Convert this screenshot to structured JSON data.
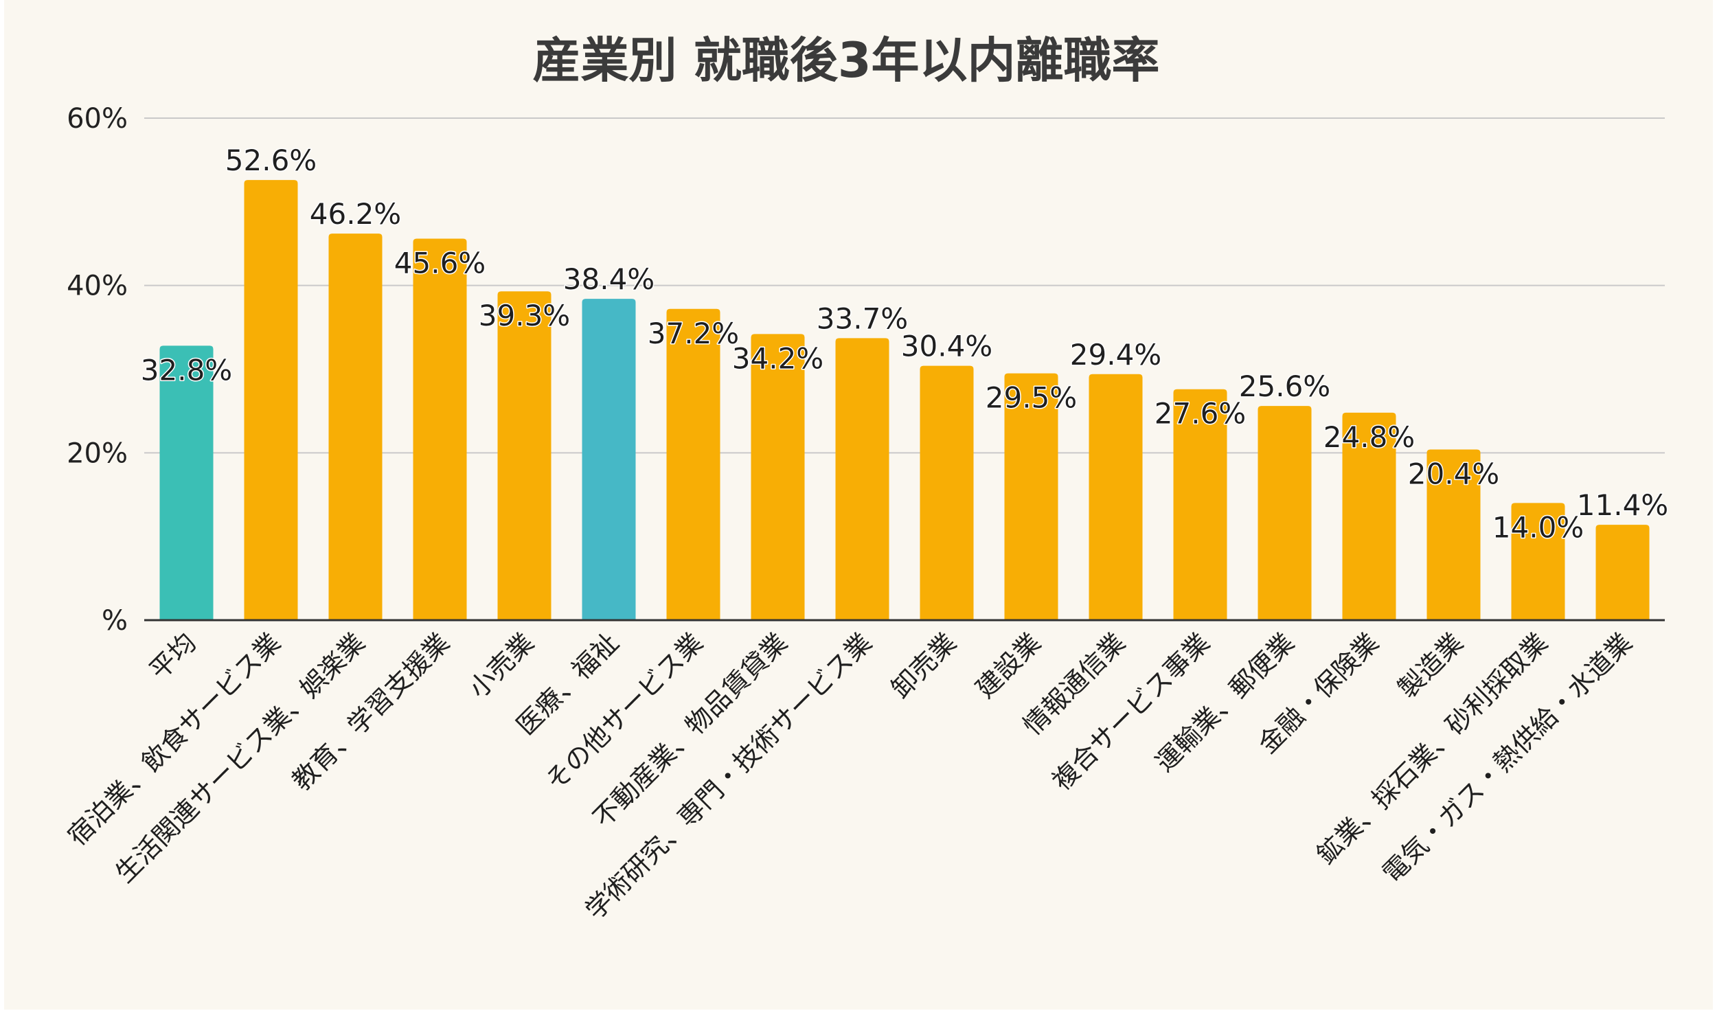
{
  "chart_data": {
    "type": "bar",
    "title": "産業別 就職後3年以内離職率",
    "xlabel": "",
    "ylabel": "",
    "ylim": [
      0,
      60
    ],
    "yticks": [
      0,
      20,
      40,
      60
    ],
    "ytick_labels": [
      "%",
      "20%",
      "40%",
      "60%"
    ],
    "grid": true,
    "categories": [
      "平均",
      "宿泊業、飲食サービス業",
      "生活関連サービス業、娯楽業",
      "教育、学習支援業",
      "小売業",
      "医療、福祉",
      "その他サービス業",
      "不動産業、物品賃貸業",
      "学術研究、専門・技術サービス業",
      "卸売業",
      "建設業",
      "情報通信業",
      "複合サービス事業",
      "運輸業、郵便業",
      "金融・保険業",
      "製造業",
      "鉱業、採石業、砂利採取業",
      "電気・ガス・熱供給・水道業"
    ],
    "values": [
      32.8,
      52.6,
      46.2,
      45.6,
      39.3,
      38.4,
      37.2,
      34.2,
      33.7,
      30.4,
      29.5,
      29.4,
      27.6,
      25.6,
      24.8,
      20.4,
      14.0,
      11.4
    ],
    "value_labels": [
      "32.8%",
      "52.6%",
      "46.2%",
      "45.6%",
      "39.3%",
      "38.4%",
      "37.2%",
      "34.2%",
      "33.7%",
      "30.4%",
      "29.5%",
      "29.4%",
      "27.6%",
      "25.6%",
      "24.8%",
      "20.4%",
      "14.0%",
      "11.4%"
    ],
    "bar_colors": [
      "#3bbfb5",
      "#f8ae05",
      "#f8ae05",
      "#f8ae05",
      "#f8ae05",
      "#46b8c6",
      "#f8ae05",
      "#f8ae05",
      "#f8ae05",
      "#f8ae05",
      "#f8ae05",
      "#f8ae05",
      "#f8ae05",
      "#f8ae05",
      "#f8ae05",
      "#f8ae05",
      "#f8ae05",
      "#f8ae05"
    ],
    "label_inside_bar": [
      true,
      false,
      false,
      true,
      true,
      false,
      true,
      true,
      false,
      false,
      true,
      false,
      true,
      false,
      true,
      true,
      true,
      false
    ]
  },
  "colors": {
    "background": "#faf7f0",
    "grid": "#c9c9c9",
    "axis": "#333333",
    "accent": "#f8ae05"
  }
}
